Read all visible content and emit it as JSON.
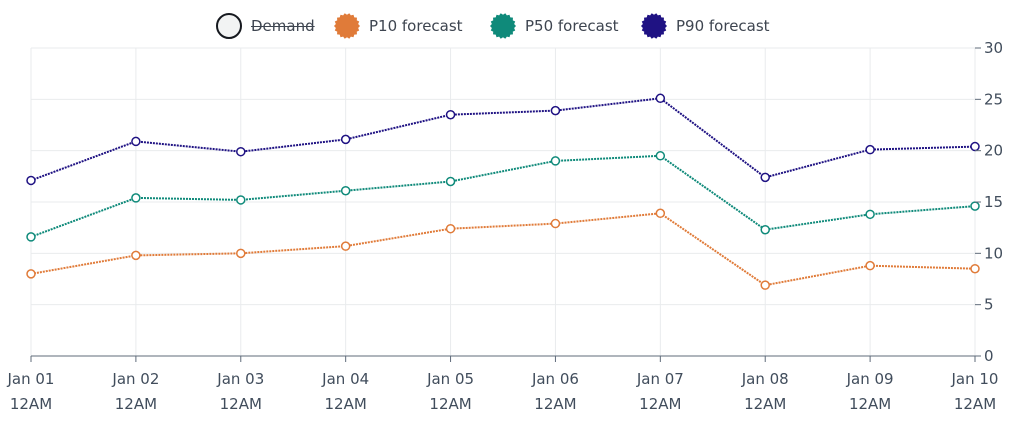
{
  "legend": {
    "items": [
      {
        "label": "Demand",
        "color": "#ffffff",
        "hidden": true
      },
      {
        "label": "P10 forecast",
        "color": "#e07b39"
      },
      {
        "label": "P50 forecast",
        "color": "#0f8a7a"
      },
      {
        "label": "P90 forecast",
        "color": "#1f1283"
      }
    ]
  },
  "chart_data": {
    "type": "line",
    "title": "",
    "xlabel": "",
    "ylabel": "",
    "categories": [
      [
        "Jan 01",
        "12AM"
      ],
      [
        "Jan 02",
        "12AM"
      ],
      [
        "Jan 03",
        "12AM"
      ],
      [
        "Jan 04",
        "12AM"
      ],
      [
        "Jan 05",
        "12AM"
      ],
      [
        "Jan 06",
        "12AM"
      ],
      [
        "Jan 07",
        "12AM"
      ],
      [
        "Jan 08",
        "12AM"
      ],
      [
        "Jan 09",
        "12AM"
      ],
      [
        "Jan 10",
        "12AM"
      ]
    ],
    "ylim": [
      0,
      30
    ],
    "yticks": [
      0,
      5,
      10,
      15,
      20,
      25,
      30
    ],
    "y_axis_side": "right",
    "grid": true,
    "legend_position": "top-center",
    "series": [
      {
        "name": "P10 forecast",
        "color": "#e07b39",
        "values": [
          8.0,
          9.8,
          10.0,
          10.7,
          12.4,
          12.9,
          13.9,
          6.9,
          8.8,
          8.5
        ]
      },
      {
        "name": "P50 forecast",
        "color": "#0f8a7a",
        "values": [
          11.6,
          15.4,
          15.2,
          16.1,
          17.0,
          19.0,
          19.5,
          12.3,
          13.8,
          14.6
        ]
      },
      {
        "name": "P90 forecast",
        "color": "#1f1283",
        "values": [
          17.1,
          20.9,
          19.9,
          21.1,
          23.5,
          23.9,
          25.1,
          17.4,
          20.1,
          20.4
        ]
      }
    ]
  }
}
